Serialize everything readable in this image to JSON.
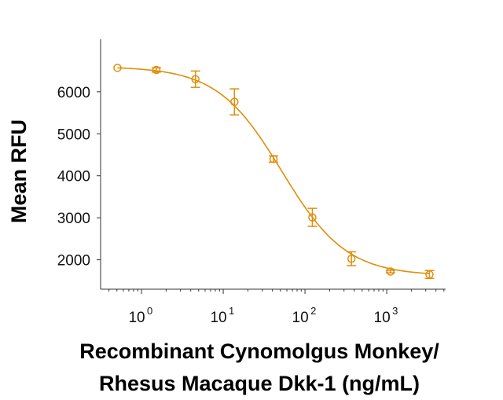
{
  "chart_data": {
    "type": "scatter",
    "xlabel_lines": [
      "Recombinant Cynomolgus Monkey/",
      "Rhesus Macaque Dkk-1 (ng/mL)"
    ],
    "ylabel": "Mean RFU",
    "x_scale": "log",
    "xlim": [
      0.316,
      5250
    ],
    "ylim": [
      1300,
      7250
    ],
    "x_ticks": [
      1,
      10,
      100,
      1000
    ],
    "y_ticks": [
      2000,
      3000,
      4000,
      5000,
      6000
    ],
    "y_tick_labels": [
      "2000",
      "3000",
      "4000",
      "5000",
      "6000"
    ],
    "grid": false,
    "color": "#E08E0B",
    "series": [
      {
        "x": [
          0.508,
          1.52,
          4.57,
          13.7,
          41.2,
          123,
          370,
          1111,
          3333
        ],
        "y": [
          6570,
          6520,
          6300,
          5760,
          4400,
          3010,
          2025,
          1720,
          1650
        ],
        "error": [
          0,
          50,
          195,
          310,
          75,
          215,
          165,
          30,
          95
        ]
      }
    ],
    "fit": {
      "model": "4PL",
      "top": 6600,
      "bottom": 1620,
      "ec50": 52,
      "hill": 1.1
    }
  }
}
